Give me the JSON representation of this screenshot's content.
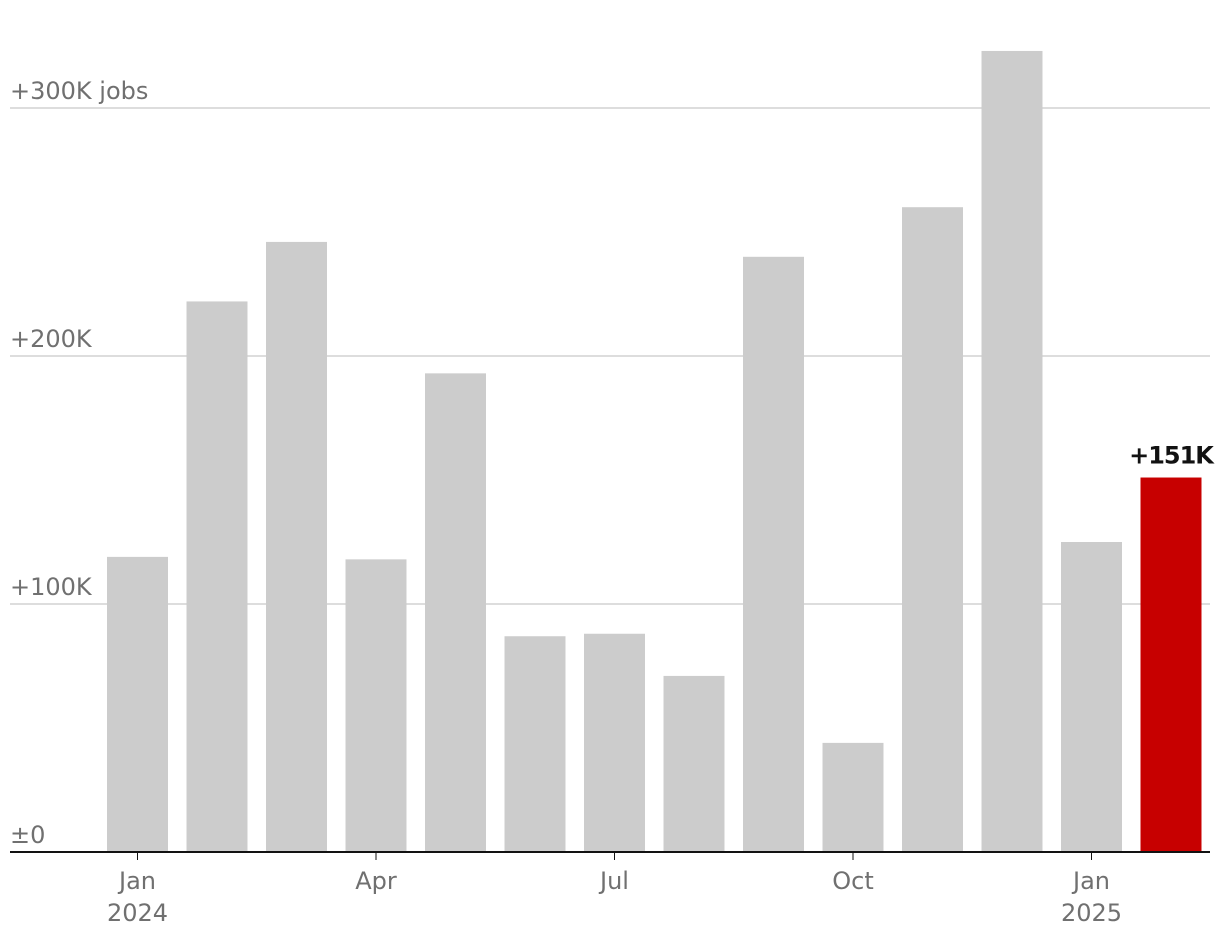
{
  "chart_data": {
    "type": "bar",
    "categories": [
      "Jan",
      null,
      null,
      "Apr",
      null,
      null,
      "Jul",
      null,
      null,
      "Oct",
      null,
      null,
      "Jan",
      null
    ],
    "years": [
      "2024",
      null,
      null,
      null,
      null,
      null,
      null,
      null,
      null,
      null,
      null,
      null,
      "2025",
      null
    ],
    "values": [
      119,
      222,
      246,
      118,
      193,
      87,
      88,
      71,
      240,
      44,
      260,
      323,
      125,
      151
    ],
    "value_labels": [
      null,
      null,
      null,
      null,
      null,
      null,
      null,
      null,
      null,
      null,
      null,
      null,
      null,
      "+151K"
    ],
    "colors": [
      "#cccccc",
      "#cccccc",
      "#cccccc",
      "#cccccc",
      "#cccccc",
      "#cccccc",
      "#cccccc",
      "#cccccc",
      "#cccccc",
      "#cccccc",
      "#cccccc",
      "#cccccc",
      "#cccccc",
      "#c70000"
    ],
    "ylim": [
      0,
      330
    ],
    "yticks": [
      {
        "value": 0,
        "label": "±0"
      },
      {
        "value": 100,
        "label": "+100K"
      },
      {
        "value": 200,
        "label": "+200K"
      },
      {
        "value": 300,
        "label": "+300K jobs"
      }
    ],
    "grid": true
  }
}
